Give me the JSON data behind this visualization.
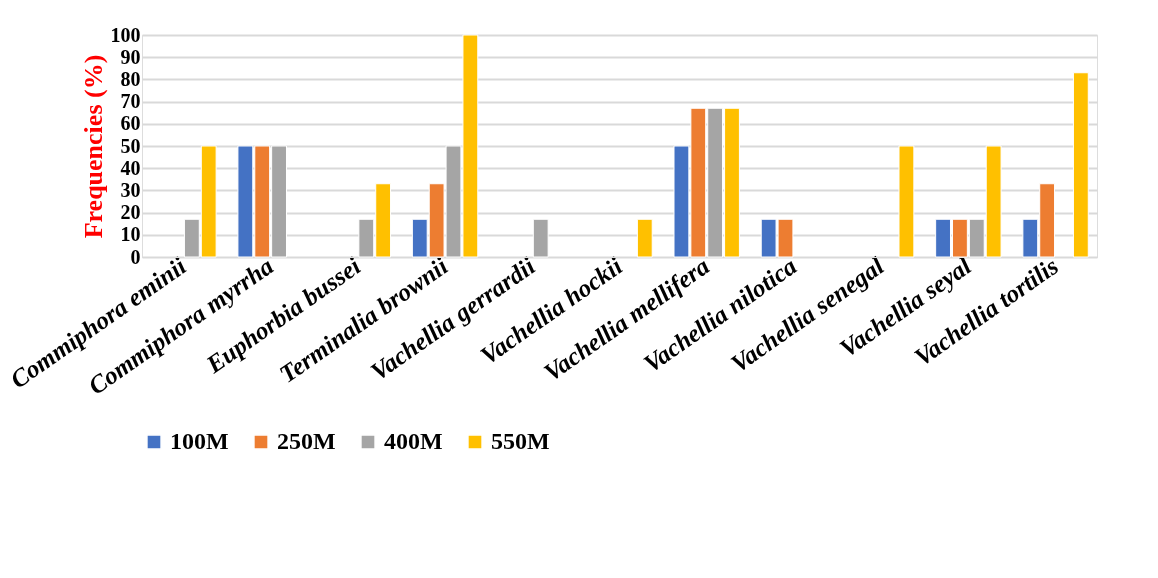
{
  "chart_data": {
    "type": "bar",
    "ylabel": "Frequencies (%)",
    "categories": [
      "Commiphora eminii",
      "Commiphora myrrha",
      "Euphorbia bussei",
      "Terminalia brownii",
      "Vachellia gerrardii",
      "Vachellia hockii",
      "Vachellia mellifera",
      "Vachellia nilotica",
      "Vachellia senegal",
      "Vachellia seyal",
      "Vachellia tortilis"
    ],
    "series": [
      {
        "name": "100M",
        "color": "#4472c4",
        "values": [
          null,
          50,
          null,
          17,
          null,
          null,
          50,
          17,
          null,
          17,
          17
        ]
      },
      {
        "name": "250M",
        "color": "#ed7d31",
        "values": [
          null,
          50,
          null,
          33,
          null,
          null,
          67,
          17,
          null,
          17,
          33
        ]
      },
      {
        "name": "400M",
        "color": "#a5a5a5",
        "values": [
          17,
          50,
          17,
          50,
          17,
          null,
          67,
          null,
          null,
          17,
          null
        ]
      },
      {
        "name": "550M",
        "color": "#ffc000",
        "values": [
          50,
          null,
          33,
          100,
          null,
          17,
          67,
          null,
          50,
          50,
          83
        ]
      }
    ],
    "ylim": [
      0,
      100
    ],
    "yticks": [
      0,
      10,
      20,
      30,
      40,
      50,
      60,
      70,
      80,
      90,
      100
    ],
    "grid": "y",
    "legend": "bottom"
  }
}
